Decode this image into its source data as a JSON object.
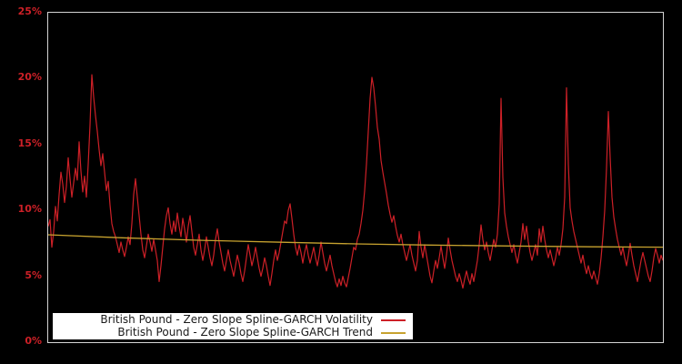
{
  "chart_data": {
    "type": "line",
    "title": "",
    "xlabel": "",
    "ylabel": "",
    "grid": false,
    "legend_position": "bottom-left-inside",
    "ylim": [
      0,
      25
    ],
    "yticks": [
      "0%",
      "5%",
      "10%",
      "15%",
      "20%",
      "25%"
    ],
    "ytick_values": [
      0,
      5,
      10,
      15,
      20,
      25
    ],
    "x_axis_labels_visible": false,
    "plot_background": "#000000",
    "border_color": "#d4d4d4",
    "series": [
      {
        "name": "British Pound - Zero Slope Spline-GARCH Volatility",
        "color": "#cd2027",
        "unit": "%",
        "values": [
          8.8,
          9.3,
          7.2,
          8.4,
          10.3,
          9.2,
          11.2,
          12.9,
          12.0,
          10.6,
          11.8,
          14.0,
          12.4,
          11.0,
          12.1,
          13.2,
          12.3,
          15.2,
          13.0,
          11.4,
          12.6,
          11.0,
          13.5,
          16.5,
          20.3,
          18.6,
          17.2,
          16.0,
          14.6,
          13.4,
          14.3,
          12.9,
          11.5,
          12.2,
          10.4,
          9.0,
          8.4,
          8.0,
          7.4,
          6.8,
          7.6,
          7.0,
          6.5,
          7.2,
          8.0,
          7.4,
          9.0,
          11.2,
          12.4,
          11.0,
          9.6,
          8.2,
          7.0,
          6.4,
          7.3,
          8.2,
          7.6,
          6.9,
          7.8,
          7.0,
          6.2,
          4.6,
          5.8,
          7.2,
          8.6,
          9.6,
          10.2,
          9.0,
          8.2,
          9.2,
          8.4,
          9.8,
          8.8,
          8.0,
          9.4,
          8.6,
          7.6,
          8.8,
          9.6,
          8.4,
          7.2,
          6.6,
          7.4,
          8.2,
          7.0,
          6.2,
          7.0,
          8.0,
          7.2,
          6.4,
          5.8,
          6.6,
          7.8,
          8.6,
          7.6,
          6.8,
          6.0,
          5.4,
          6.2,
          7.0,
          6.2,
          5.6,
          5.0,
          5.8,
          6.6,
          6.0,
          5.2,
          4.6,
          5.4,
          6.4,
          7.4,
          6.6,
          5.8,
          6.4,
          7.2,
          6.4,
          5.6,
          5.0,
          5.6,
          6.4,
          5.8,
          5.0,
          4.3,
          5.2,
          6.2,
          7.0,
          6.2,
          6.8,
          7.6,
          8.4,
          9.2,
          9.0,
          10.0,
          10.5,
          9.4,
          8.2,
          7.2,
          6.6,
          7.4,
          6.8,
          6.0,
          6.8,
          7.4,
          6.6,
          6.0,
          6.6,
          7.2,
          6.4,
          5.8,
          6.6,
          7.6,
          6.8,
          6.0,
          5.4,
          6.0,
          6.6,
          5.8,
          5.2,
          4.6,
          4.2,
          4.8,
          4.3,
          5.0,
          4.5,
          4.2,
          4.9,
          5.6,
          6.4,
          7.2,
          7.0,
          7.8,
          8.2,
          9.0,
          10.0,
          11.5,
          13.5,
          16.0,
          18.5,
          20.1,
          19.3,
          17.9,
          16.3,
          15.4,
          13.8,
          12.9,
          12.1,
          11.3,
          10.4,
          9.7,
          9.1,
          9.6,
          8.8,
          8.1,
          7.6,
          8.2,
          7.4,
          6.8,
          6.2,
          6.8,
          7.4,
          6.6,
          6.0,
          5.4,
          6.2,
          8.4,
          7.2,
          6.4,
          7.4,
          6.6,
          5.8,
          5.0,
          4.5,
          5.4,
          6.2,
          5.6,
          6.4,
          7.3,
          6.4,
          5.6,
          6.6,
          7.9,
          7.0,
          6.2,
          5.6,
          5.0,
          4.6,
          5.2,
          4.7,
          4.1,
          4.8,
          5.4,
          4.8,
          4.4,
          5.2,
          4.6,
          5.4,
          6.2,
          7.4,
          8.9,
          7.8,
          7.0,
          7.6,
          6.8,
          6.2,
          7.0,
          7.8,
          7.2,
          8.2,
          10.5,
          18.5,
          12.5,
          9.8,
          8.8,
          8.0,
          7.4,
          6.8,
          7.4,
          6.6,
          6.0,
          6.8,
          7.6,
          9.0,
          7.8,
          8.8,
          7.6,
          6.8,
          6.2,
          6.8,
          7.4,
          6.6,
          8.6,
          7.6,
          8.8,
          7.8,
          7.0,
          6.4,
          7.0,
          6.4,
          5.8,
          6.4,
          7.2,
          6.6,
          7.4,
          8.6,
          11.0,
          19.3,
          13.5,
          10.2,
          9.2,
          8.4,
          7.8,
          7.2,
          6.6,
          6.0,
          6.6,
          5.8,
          5.2,
          5.8,
          5.2,
          4.8,
          5.4,
          4.9,
          4.4,
          5.2,
          6.4,
          8.0,
          10.0,
          13.2,
          17.5,
          14.0,
          11.0,
          9.5,
          8.6,
          7.8,
          7.2,
          6.6,
          7.2,
          6.4,
          5.8,
          6.6,
          7.5,
          6.6,
          5.8,
          5.2,
          4.6,
          5.4,
          6.2,
          6.8,
          6.2,
          5.6,
          5.0,
          4.6,
          5.4,
          6.4,
          7.1,
          6.6,
          6.0,
          6.6,
          6.2
        ]
      },
      {
        "name": "British Pound - Zero Slope Spline-GARCH Trend",
        "color": "#c7a22f",
        "unit": "%",
        "points": [
          [
            0,
            8.15
          ],
          [
            0.12,
            7.92
          ],
          [
            0.25,
            7.73
          ],
          [
            0.38,
            7.58
          ],
          [
            0.5,
            7.46
          ],
          [
            0.62,
            7.37
          ],
          [
            0.75,
            7.3
          ],
          [
            0.88,
            7.24
          ],
          [
            1,
            7.21
          ]
        ]
      }
    ]
  },
  "axis": {
    "tick_label_color": "#cc2027"
  }
}
